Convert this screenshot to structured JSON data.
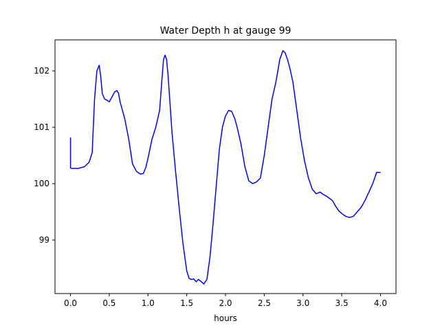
{
  "chart_data": {
    "type": "line",
    "title": "Water Depth h at gauge 99",
    "xlabel": "hours",
    "ylabel": "",
    "xlim": [
      -0.2,
      4.2
    ],
    "ylim": [
      98.05,
      102.55
    ],
    "xticks": [
      0.0,
      0.5,
      1.0,
      1.5,
      2.0,
      2.5,
      3.0,
      3.5,
      4.0
    ],
    "xtick_labels": [
      "0.0",
      "0.5",
      "1.0",
      "1.5",
      "2.0",
      "2.5",
      "3.0",
      "3.5",
      "4.0"
    ],
    "yticks": [
      99,
      100,
      101,
      102
    ],
    "ytick_labels": [
      "99",
      "100",
      "101",
      "102"
    ],
    "grid": false,
    "series": [
      {
        "color": "#0000ff",
        "x": [
          0.0,
          0.0,
          0.02,
          0.1,
          0.18,
          0.24,
          0.28,
          0.31,
          0.34,
          0.37,
          0.39,
          0.41,
          0.44,
          0.47,
          0.5,
          0.54,
          0.57,
          0.6,
          0.62,
          0.64,
          0.66,
          0.7,
          0.75,
          0.8,
          0.85,
          0.9,
          0.94,
          0.97,
          1.0,
          1.05,
          1.1,
          1.15,
          1.18,
          1.2,
          1.22,
          1.24,
          1.26,
          1.28,
          1.31,
          1.35,
          1.4,
          1.45,
          1.5,
          1.53,
          1.56,
          1.59,
          1.62,
          1.65,
          1.68,
          1.72,
          1.76,
          1.8,
          1.84,
          1.88,
          1.92,
          1.96,
          2.0,
          2.04,
          2.08,
          2.12,
          2.15,
          2.2,
          2.25,
          2.3,
          2.35,
          2.4,
          2.45,
          2.5,
          2.55,
          2.6,
          2.65,
          2.7,
          2.74,
          2.77,
          2.8,
          2.83,
          2.87,
          2.92,
          2.97,
          3.02,
          3.07,
          3.12,
          3.17,
          3.22,
          3.27,
          3.3,
          3.33,
          3.38,
          3.42,
          3.46,
          3.5,
          3.55,
          3.6,
          3.65,
          3.7,
          3.75,
          3.8,
          3.85,
          3.9,
          3.95,
          4.0
        ],
        "y": [
          100.82,
          100.28,
          100.27,
          100.27,
          100.3,
          100.38,
          100.55,
          101.5,
          102.0,
          102.1,
          101.9,
          101.6,
          101.5,
          101.48,
          101.45,
          101.55,
          101.63,
          101.65,
          101.6,
          101.45,
          101.35,
          101.15,
          100.8,
          100.35,
          100.22,
          100.17,
          100.18,
          100.28,
          100.45,
          100.78,
          101.0,
          101.3,
          101.85,
          102.2,
          102.28,
          102.2,
          101.9,
          101.5,
          100.9,
          100.3,
          99.6,
          98.95,
          98.45,
          98.32,
          98.3,
          98.31,
          98.26,
          98.3,
          98.27,
          98.22,
          98.3,
          98.7,
          99.3,
          99.95,
          100.6,
          101.0,
          101.2,
          101.3,
          101.28,
          101.15,
          101.0,
          100.7,
          100.3,
          100.05,
          100.0,
          100.03,
          100.1,
          100.5,
          101.0,
          101.5,
          101.8,
          102.2,
          102.36,
          102.32,
          102.2,
          102.05,
          101.8,
          101.3,
          100.8,
          100.4,
          100.1,
          99.9,
          99.82,
          99.85,
          99.8,
          99.78,
          99.75,
          99.7,
          99.6,
          99.52,
          99.47,
          99.42,
          99.4,
          99.42,
          99.5,
          99.58,
          99.7,
          99.85,
          100.0,
          100.2,
          100.2
        ]
      }
    ]
  }
}
